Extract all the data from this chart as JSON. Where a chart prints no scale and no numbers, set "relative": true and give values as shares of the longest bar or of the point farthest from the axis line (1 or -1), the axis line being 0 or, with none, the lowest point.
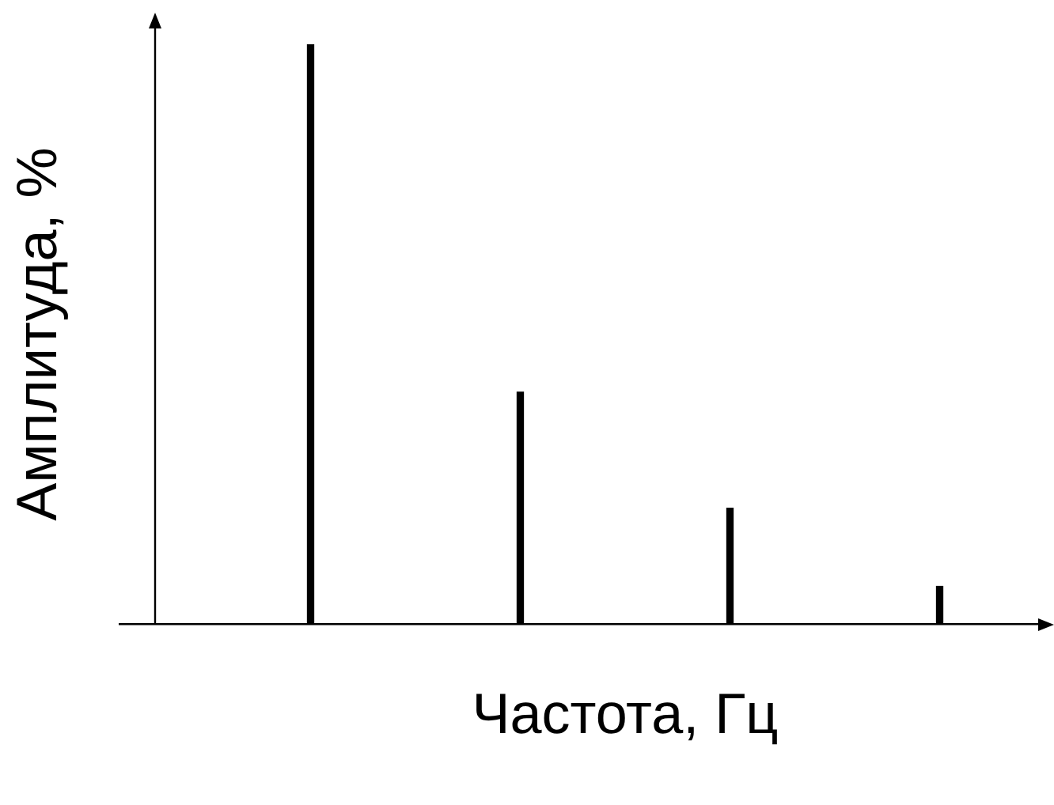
{
  "chart_data": {
    "type": "bar",
    "xlabel": "Частота, Гц",
    "ylabel": "Амплитуда, %",
    "categories": [
      null,
      null,
      null,
      null
    ],
    "values": [
      1,
      0.4,
      0.2,
      0.065
    ],
    "color": "#000000",
    "relative": true,
    "grid": false,
    "legend": false
  }
}
